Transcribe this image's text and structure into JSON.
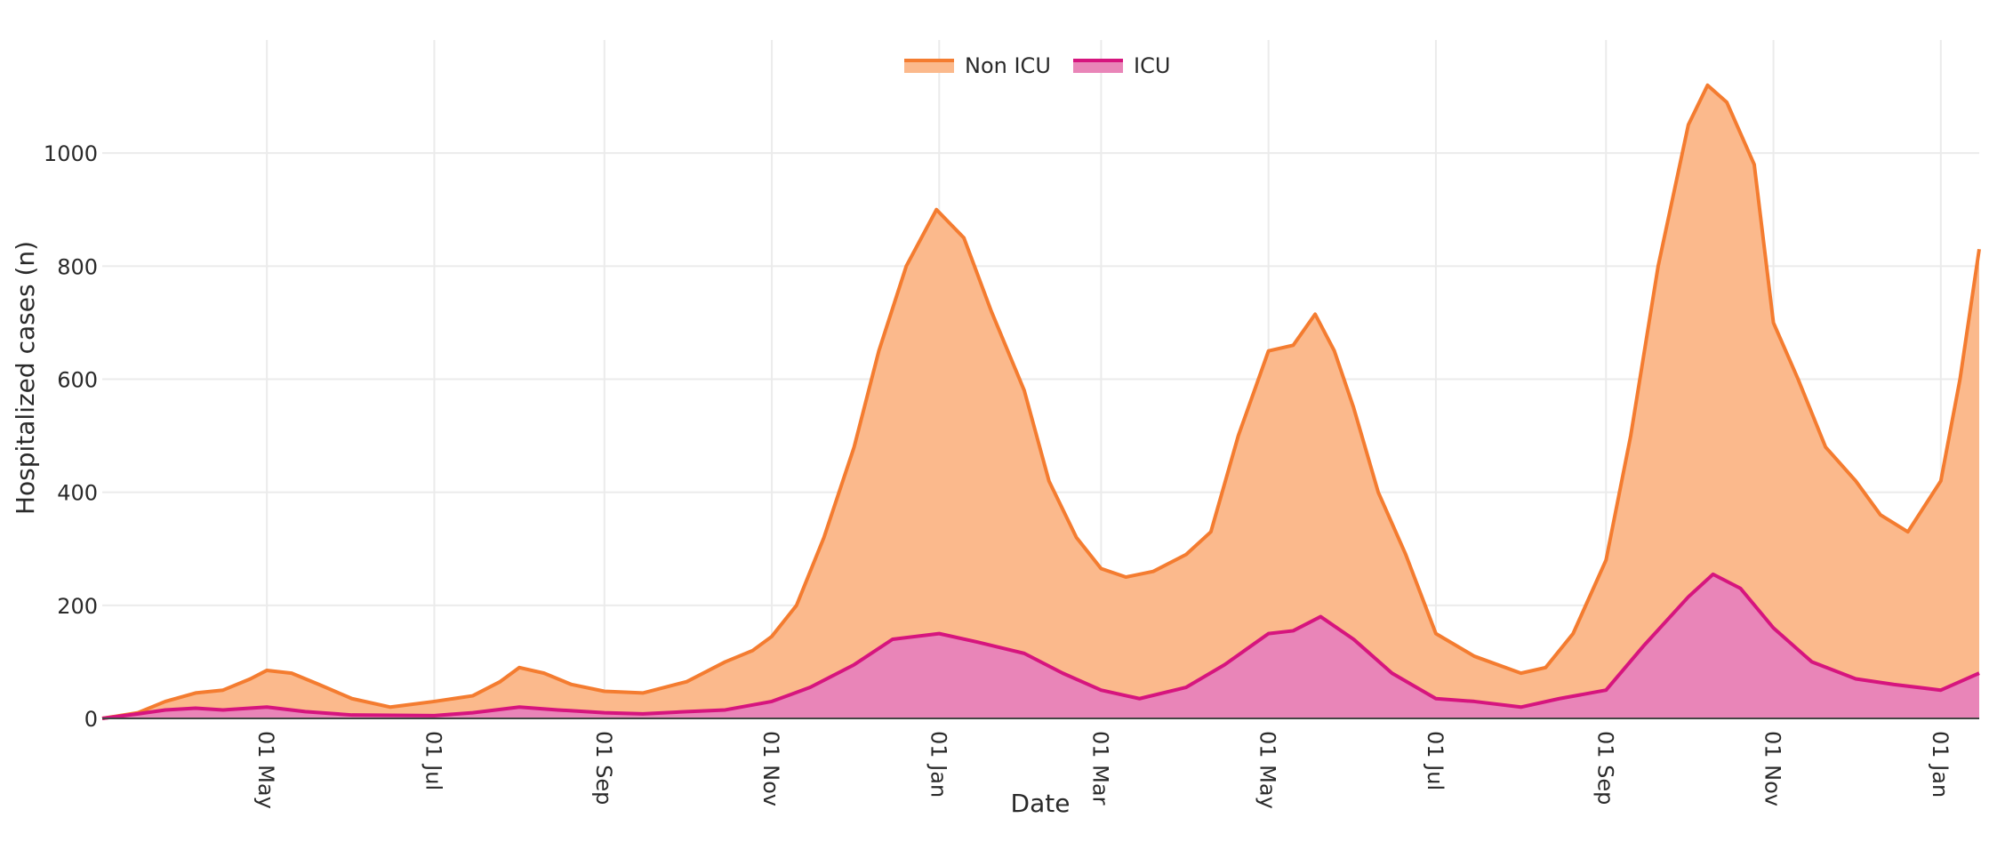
{
  "chart_data": {
    "type": "area",
    "stacked": true,
    "xlabel": "Date",
    "ylabel": "Hospitalized cases (n)",
    "x_range": [
      "2020-03-02",
      "2022-01-15"
    ],
    "ylim": [
      0,
      1200
    ],
    "y_ticks": [
      0,
      200,
      400,
      600,
      800,
      1000
    ],
    "x_ticks": [
      {
        "date": "2020-05-01",
        "label": "01 May"
      },
      {
        "date": "2020-07-01",
        "label": "01 Jul"
      },
      {
        "date": "2020-09-01",
        "label": "01 Sep"
      },
      {
        "date": "2020-11-01",
        "label": "01 Nov"
      },
      {
        "date": "2021-01-01",
        "label": "01 Jan"
      },
      {
        "date": "2021-03-01",
        "label": "01 Mar"
      },
      {
        "date": "2021-05-01",
        "label": "01 May"
      },
      {
        "date": "2021-07-01",
        "label": "01 Jul"
      },
      {
        "date": "2021-09-01",
        "label": "01 Sep"
      },
      {
        "date": "2021-11-01",
        "label": "01 Nov"
      },
      {
        "date": "2022-01-01",
        "label": "01 Jan"
      }
    ],
    "grid": true,
    "legend_position": "top-center",
    "series": [
      {
        "name": "Non ICU",
        "line_color": "#f47c30",
        "fill_color": "#fbb98c",
        "points": [
          [
            "2020-03-02",
            0
          ],
          [
            "2020-03-15",
            10
          ],
          [
            "2020-03-25",
            30
          ],
          [
            "2020-04-05",
            45
          ],
          [
            "2020-04-15",
            50
          ],
          [
            "2020-04-25",
            70
          ],
          [
            "2020-05-01",
            85
          ],
          [
            "2020-05-10",
            80
          ],
          [
            "2020-05-20",
            60
          ],
          [
            "2020-06-01",
            35
          ],
          [
            "2020-06-15",
            20
          ],
          [
            "2020-07-01",
            30
          ],
          [
            "2020-07-15",
            40
          ],
          [
            "2020-07-25",
            65
          ],
          [
            "2020-08-01",
            90
          ],
          [
            "2020-08-10",
            80
          ],
          [
            "2020-08-20",
            60
          ],
          [
            "2020-09-01",
            48
          ],
          [
            "2020-09-15",
            45
          ],
          [
            "2020-10-01",
            65
          ],
          [
            "2020-10-15",
            100
          ],
          [
            "2020-10-25",
            120
          ],
          [
            "2020-11-01",
            145
          ],
          [
            "2020-11-10",
            200
          ],
          [
            "2020-11-20",
            320
          ],
          [
            "2020-12-01",
            480
          ],
          [
            "2020-12-10",
            650
          ],
          [
            "2020-12-20",
            800
          ],
          [
            "2020-12-31",
            900
          ],
          [
            "2021-01-10",
            850
          ],
          [
            "2021-01-20",
            720
          ],
          [
            "2021-02-01",
            580
          ],
          [
            "2021-02-10",
            420
          ],
          [
            "2021-02-20",
            320
          ],
          [
            "2021-03-01",
            265
          ],
          [
            "2021-03-10",
            250
          ],
          [
            "2021-03-20",
            260
          ],
          [
            "2021-04-01",
            290
          ],
          [
            "2021-04-10",
            330
          ],
          [
            "2021-04-20",
            500
          ],
          [
            "2021-05-01",
            650
          ],
          [
            "2021-05-10",
            660
          ],
          [
            "2021-05-18",
            715
          ],
          [
            "2021-05-25",
            650
          ],
          [
            "2021-06-01",
            550
          ],
          [
            "2021-06-10",
            400
          ],
          [
            "2021-06-20",
            290
          ],
          [
            "2021-07-01",
            150
          ],
          [
            "2021-07-15",
            110
          ],
          [
            "2021-08-01",
            80
          ],
          [
            "2021-08-10",
            90
          ],
          [
            "2021-08-20",
            150
          ],
          [
            "2021-09-01",
            280
          ],
          [
            "2021-09-10",
            500
          ],
          [
            "2021-09-20",
            800
          ],
          [
            "2021-10-01",
            1050
          ],
          [
            "2021-10-08",
            1120
          ],
          [
            "2021-10-15",
            1090
          ],
          [
            "2021-10-25",
            980
          ],
          [
            "2021-11-01",
            700
          ],
          [
            "2021-11-10",
            600
          ],
          [
            "2021-11-20",
            480
          ],
          [
            "2021-12-01",
            420
          ],
          [
            "2021-12-10",
            360
          ],
          [
            "2021-12-20",
            330
          ],
          [
            "2022-01-01",
            420
          ],
          [
            "2022-01-08",
            600
          ],
          [
            "2022-01-15",
            830
          ]
        ]
      },
      {
        "name": "ICU",
        "line_color": "#d6157e",
        "fill_color": "#e985b8",
        "points": [
          [
            "2020-03-02",
            0
          ],
          [
            "2020-03-15",
            8
          ],
          [
            "2020-03-25",
            15
          ],
          [
            "2020-04-05",
            18
          ],
          [
            "2020-04-15",
            15
          ],
          [
            "2020-05-01",
            20
          ],
          [
            "2020-05-15",
            12
          ],
          [
            "2020-06-01",
            6
          ],
          [
            "2020-07-01",
            5
          ],
          [
            "2020-07-15",
            10
          ],
          [
            "2020-08-01",
            20
          ],
          [
            "2020-08-15",
            15
          ],
          [
            "2020-09-01",
            10
          ],
          [
            "2020-09-15",
            8
          ],
          [
            "2020-10-01",
            12
          ],
          [
            "2020-10-15",
            15
          ],
          [
            "2020-11-01",
            30
          ],
          [
            "2020-11-15",
            55
          ],
          [
            "2020-12-01",
            95
          ],
          [
            "2020-12-15",
            140
          ],
          [
            "2021-01-01",
            150
          ],
          [
            "2021-01-15",
            135
          ],
          [
            "2021-02-01",
            115
          ],
          [
            "2021-02-15",
            80
          ],
          [
            "2021-03-01",
            50
          ],
          [
            "2021-03-15",
            35
          ],
          [
            "2021-04-01",
            55
          ],
          [
            "2021-04-15",
            95
          ],
          [
            "2021-05-01",
            150
          ],
          [
            "2021-05-10",
            155
          ],
          [
            "2021-05-20",
            180
          ],
          [
            "2021-06-01",
            140
          ],
          [
            "2021-06-15",
            80
          ],
          [
            "2021-07-01",
            35
          ],
          [
            "2021-07-15",
            30
          ],
          [
            "2021-08-01",
            20
          ],
          [
            "2021-08-15",
            35
          ],
          [
            "2021-09-01",
            50
          ],
          [
            "2021-09-15",
            130
          ],
          [
            "2021-10-01",
            215
          ],
          [
            "2021-10-10",
            255
          ],
          [
            "2021-10-20",
            230
          ],
          [
            "2021-11-01",
            160
          ],
          [
            "2021-11-15",
            100
          ],
          [
            "2021-12-01",
            70
          ],
          [
            "2021-12-15",
            60
          ],
          [
            "2022-01-01",
            50
          ],
          [
            "2022-01-15",
            80
          ]
        ]
      }
    ]
  }
}
